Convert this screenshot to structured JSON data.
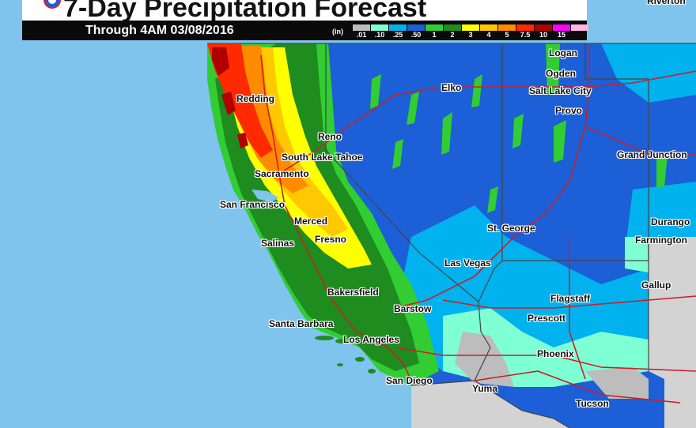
{
  "header": {
    "title": "7-Day Precipitation Forecast",
    "subtitle": "Through 4AM 03/08/2016"
  },
  "legend": {
    "unit": "(in)",
    "bins": [
      {
        "label": ".01",
        "color": "#bdbdbd"
      },
      {
        "label": ".10",
        "color": "#7fffd4"
      },
      {
        "label": ".25",
        "color": "#00b2ee"
      },
      {
        "label": ".50",
        "color": "#1c5fd6"
      },
      {
        "label": "1",
        "color": "#32cd32"
      },
      {
        "label": "2",
        "color": "#1e8c1e"
      },
      {
        "label": "3",
        "color": "#ffff00"
      },
      {
        "label": "4",
        "color": "#ffc800"
      },
      {
        "label": "5",
        "color": "#ff8c00"
      },
      {
        "label": "7.5",
        "color": "#ff2a00"
      },
      {
        "label": "10",
        "color": "#b00000"
      },
      {
        "label": "15",
        "color": "#ff00ff"
      },
      {
        "label": "",
        "color": "#ffb6e6"
      }
    ]
  },
  "colors": {
    "ocean": "#7ec4ec",
    "mexico": "#d3d3d3",
    "state_border": "#444444",
    "highway": "#c8202a"
  },
  "cities": [
    {
      "name": "Riverton"
    },
    {
      "name": "Logan"
    },
    {
      "name": "Ogden"
    },
    {
      "name": "Salt Lake City"
    },
    {
      "name": "Elko"
    },
    {
      "name": "Provo"
    },
    {
      "name": "Redding"
    },
    {
      "name": "Reno"
    },
    {
      "name": "South Lake Tahoe"
    },
    {
      "name": "Grand Junction"
    },
    {
      "name": "Sacramento"
    },
    {
      "name": "San Francisco"
    },
    {
      "name": "Merced"
    },
    {
      "name": "Durango"
    },
    {
      "name": "St. George"
    },
    {
      "name": "Fresno"
    },
    {
      "name": "Farmington"
    },
    {
      "name": "Salinas"
    },
    {
      "name": "Las Vegas"
    },
    {
      "name": "Gallup"
    },
    {
      "name": "Bakersfield"
    },
    {
      "name": "Flagstaff"
    },
    {
      "name": "Barstow"
    },
    {
      "name": "Prescott"
    },
    {
      "name": "Santa Barbara"
    },
    {
      "name": "Los Angeles"
    },
    {
      "name": "Phoenix"
    },
    {
      "name": "San Diego"
    },
    {
      "name": "Yuma"
    },
    {
      "name": "Tucson"
    }
  ]
}
